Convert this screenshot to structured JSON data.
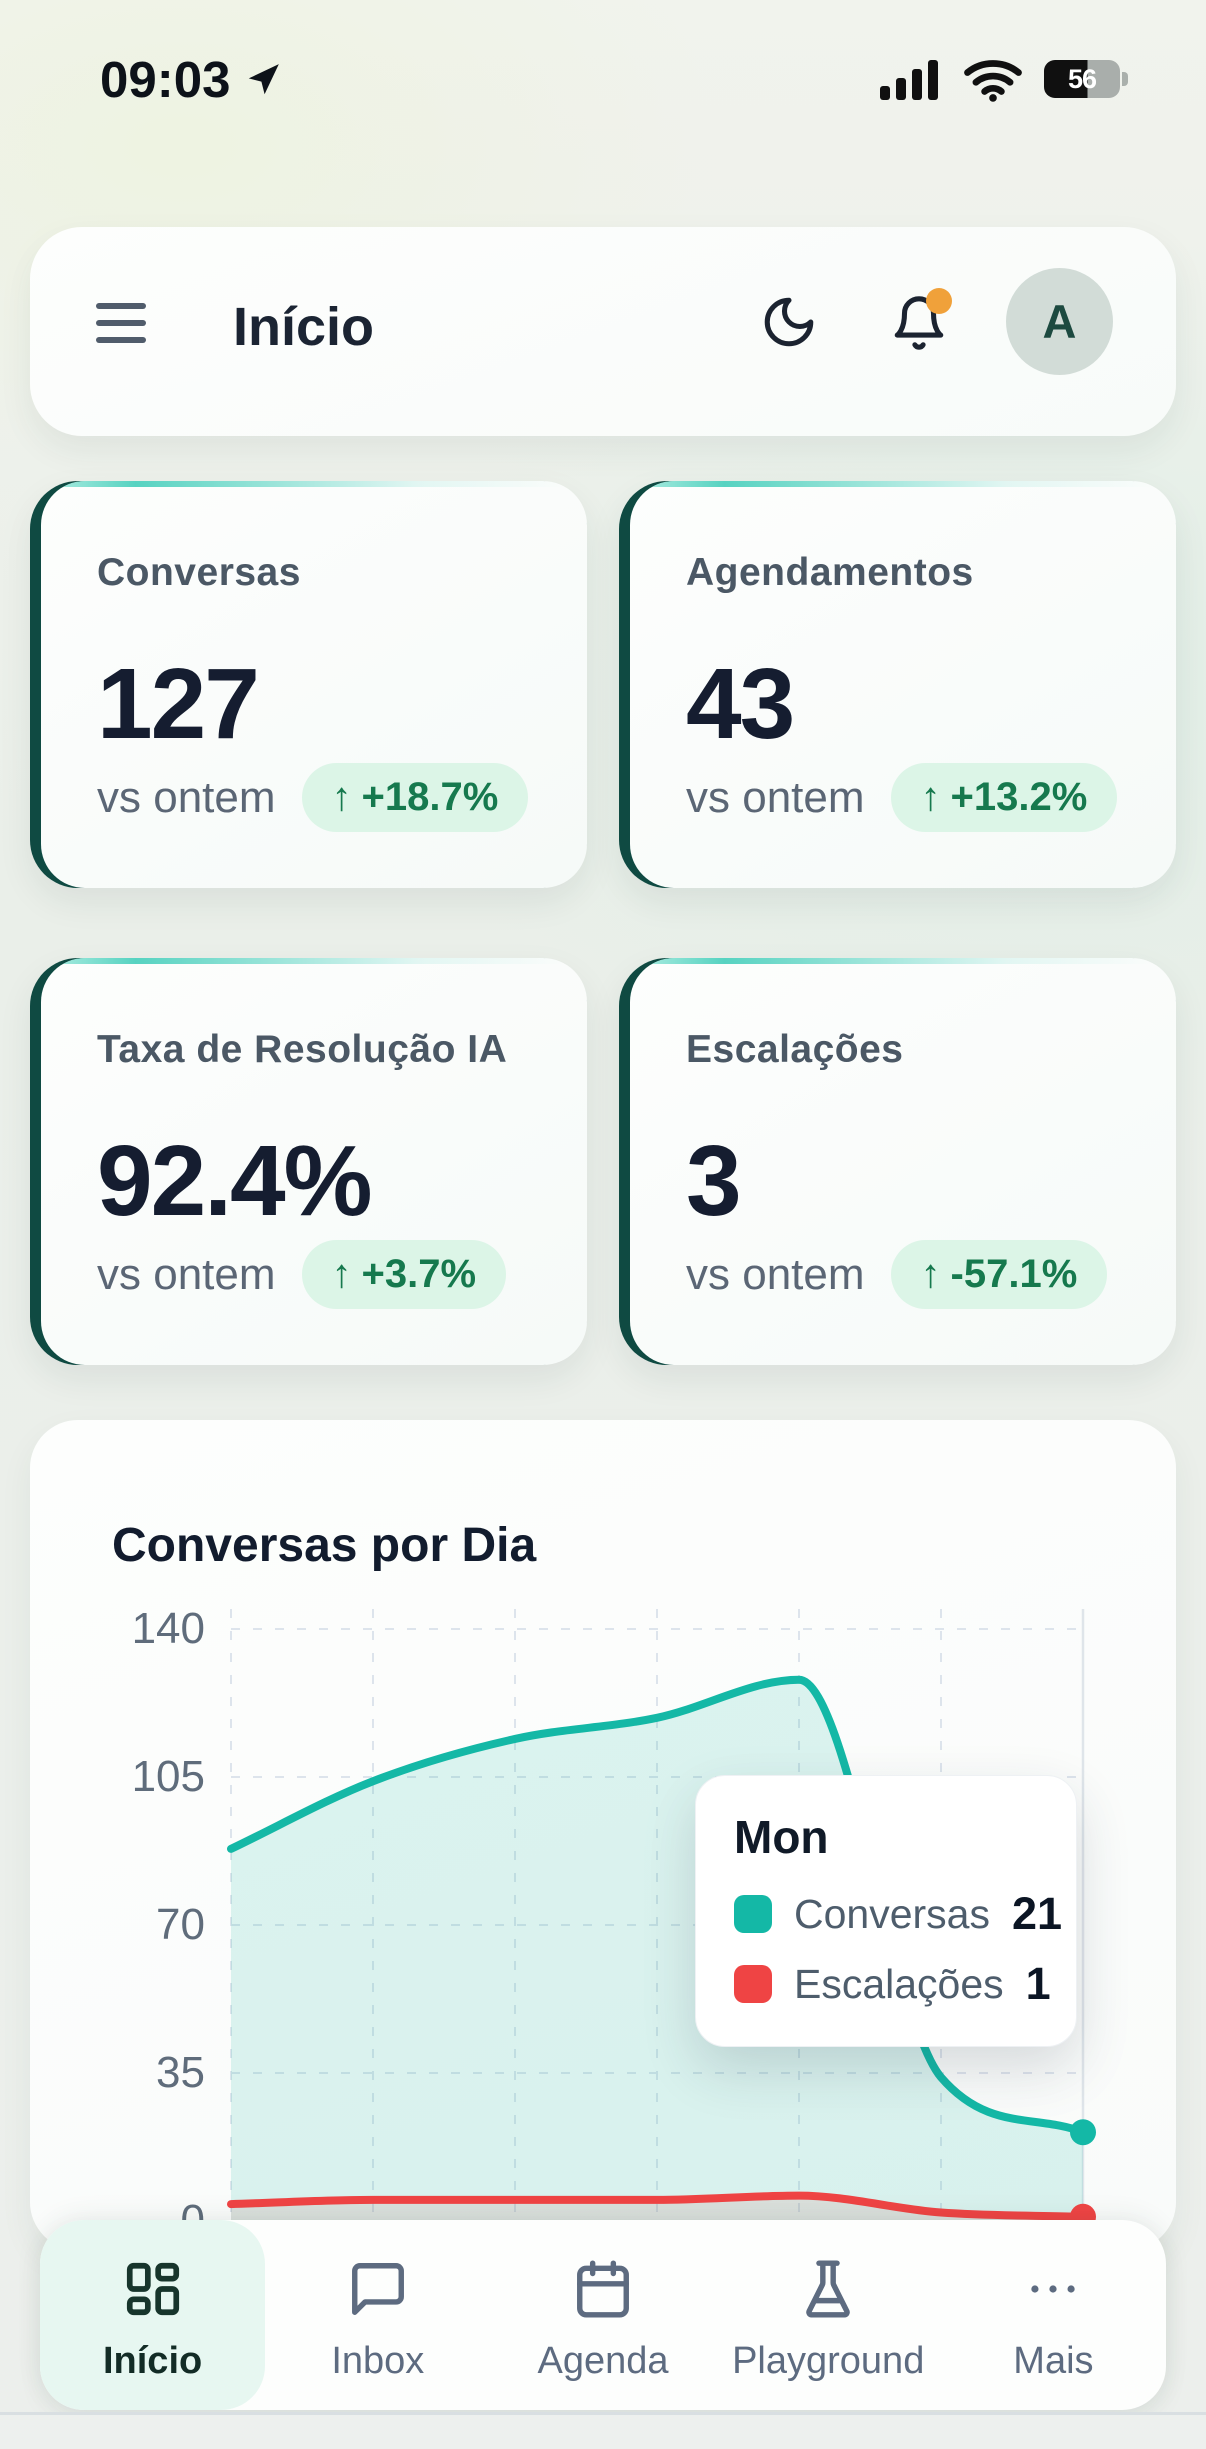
{
  "status_bar": {
    "time": "09:03",
    "battery_percent": "56"
  },
  "header": {
    "title": "Início",
    "avatar_letter": "A"
  },
  "stats": [
    {
      "label": "Conversas",
      "value": "127",
      "compare_label": "vs ontem",
      "arrow": "↑",
      "delta": "+18.7%"
    },
    {
      "label": "Agendamentos",
      "value": "43",
      "compare_label": "vs ontem",
      "arrow": "↑",
      "delta": "+13.2%"
    },
    {
      "label": "Taxa de Resolução IA",
      "value": "92.4%",
      "compare_label": "vs ontem",
      "arrow": "↑",
      "delta": "+3.7%"
    },
    {
      "label": "Escalações",
      "value": "3",
      "compare_label": "vs ontem",
      "arrow": "↑",
      "delta": "-57.1%"
    }
  ],
  "chart_card": {
    "title": "Conversas por Dia"
  },
  "chart_data": {
    "type": "area",
    "title": "Conversas por Dia",
    "x_labels_visible": false,
    "y_ticks": [
      140,
      105,
      70,
      35,
      0
    ],
    "ylim": [
      0,
      140
    ],
    "grid": "dashed",
    "series": [
      {
        "name": "Conversas",
        "color": "#14b8a6",
        "values": [
          88,
          104,
          114,
          119,
          128,
          34,
          21
        ]
      },
      {
        "name": "Escalações",
        "color": "#ef4444",
        "values": [
          4,
          5,
          5,
          5,
          6,
          2,
          1
        ]
      }
    ],
    "tooltip": {
      "label": "Mon",
      "rows": [
        {
          "name": "Conversas",
          "value": "21",
          "color": "#14b8a6"
        },
        {
          "name": "Escalações",
          "value": "1",
          "color": "#ef4444"
        }
      ]
    }
  },
  "nav": {
    "items": [
      {
        "label": "Início",
        "icon": "dashboard-icon",
        "active": true
      },
      {
        "label": "Inbox",
        "icon": "inbox-icon",
        "active": false
      },
      {
        "label": "Agenda",
        "icon": "calendar-icon",
        "active": false
      },
      {
        "label": "Playground",
        "icon": "flask-icon",
        "active": false
      },
      {
        "label": "Mais",
        "icon": "ellipsis-icon",
        "active": false
      }
    ]
  },
  "colors": {
    "accent_teal": "#14b8a6",
    "accent_red": "#ef4444",
    "card_stripe": "#0f4a42",
    "badge_bg": "#dcf5e7",
    "badge_text": "#16794e",
    "notification_dot": "#f0a13a",
    "nav_active_bg": "#e7f7f1"
  }
}
